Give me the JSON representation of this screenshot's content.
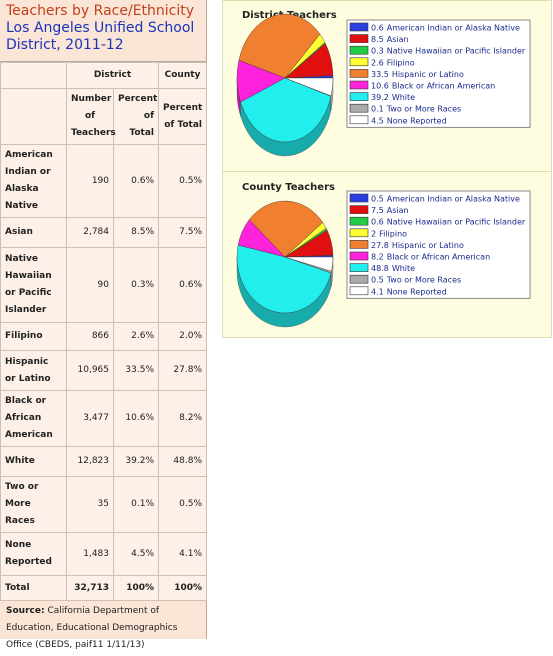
{
  "title": "Teachers by Race/Ethnicity",
  "subtitle": "Los Angeles Unified School District, 2011-12",
  "table": {
    "header_top": [
      "District",
      "County"
    ],
    "header": [
      "Number of Teachers",
      "Percent of Total",
      "Percent of Total"
    ],
    "rows": [
      [
        "American Indian or Alaska Native",
        "190",
        "0.6%",
        "0.5%"
      ],
      [
        "Asian",
        "2,784",
        "8.5%",
        "7.5%"
      ],
      [
        "Native Hawaiian or Pacific Islander",
        "90",
        "0.3%",
        "0.6%"
      ],
      [
        "Filipino",
        "866",
        "2.6%",
        "2.0%"
      ],
      [
        "Hispanic or Latino",
        "10,965",
        "33.5%",
        "27.8%"
      ],
      [
        "Black or African American",
        "3,477",
        "10.6%",
        "8.2%"
      ],
      [
        "White",
        "12,823",
        "39.2%",
        "48.8%"
      ],
      [
        "Two or More Races",
        "35",
        "0.1%",
        "0.5%"
      ],
      [
        "None Reported",
        "1,483",
        "4.5%",
        "4.1%"
      ],
      [
        "Total",
        "32,713",
        "100%",
        "100%"
      ]
    ]
  },
  "source_label": "Source:",
  "source_text": "California Department of Education, Educational Demographics Office (CBEDS, paif11 1/11/13)",
  "chart_data": [
    {
      "type": "pie",
      "title": "District Teachers",
      "categories": [
        "American Indian or Alaska Native",
        "Asian",
        "Native Hawaiian or Pacific Islander",
        "Filipino",
        "Hispanic or Latino",
        "Black or African American",
        "White",
        "Two or More Races",
        "None Reported"
      ],
      "values": [
        0.6,
        8.5,
        0.3,
        2.6,
        33.5,
        10.6,
        39.2,
        0.1,
        4.5
      ],
      "colors": [
        "#2a3fe0",
        "#e01010",
        "#22cc44",
        "#ffff33",
        "#f07f30",
        "#ff22dd",
        "#22eeee",
        "#aaaaaa",
        "#ffffff"
      ]
    },
    {
      "type": "pie",
      "title": "County Teachers",
      "categories": [
        "American Indian or Alaska Native",
        "Asian",
        "Native Hawaiian or Pacific Islander",
        "Filipino",
        "Hispanic or Latino",
        "Black or African American",
        "White",
        "Two or More Races",
        "None Reported"
      ],
      "values": [
        0.5,
        7.5,
        0.6,
        2,
        27.8,
        8.2,
        48.8,
        0.5,
        4.1
      ],
      "colors": [
        "#2a3fe0",
        "#e01010",
        "#22cc44",
        "#ffff33",
        "#f07f30",
        "#ff22dd",
        "#22eeee",
        "#aaaaaa",
        "#ffffff"
      ]
    }
  ]
}
